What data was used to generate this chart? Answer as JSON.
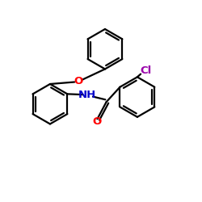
{
  "background_color": "#ffffff",
  "bond_color": "#000000",
  "o_color": "#ff0000",
  "n_color": "#0000cc",
  "cl_color": "#9900aa",
  "line_width": 1.6,
  "figsize": [
    2.5,
    2.5
  ],
  "dpi": 100,
  "xlim": [
    0,
    10
  ],
  "ylim": [
    0,
    10
  ]
}
